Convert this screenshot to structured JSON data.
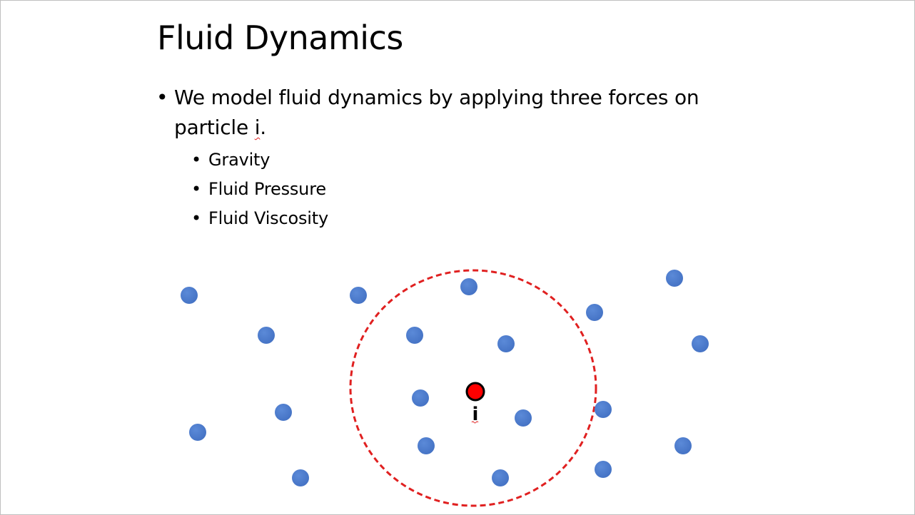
{
  "slide": {
    "title": "Fluid Dynamics",
    "bullet_text": "We model fluid dynamics by applying three forces on particle ",
    "bullet_var": "i",
    "bullet_end": ".",
    "sub_bullets": [
      "Gravity",
      "Fluid Pressure",
      "Fluid Viscosity"
    ],
    "particle_label": "i"
  },
  "colors": {
    "neighbor_particle": "#4472c4",
    "target_particle": "#ff0000",
    "radius_circle": "#e02020"
  }
}
